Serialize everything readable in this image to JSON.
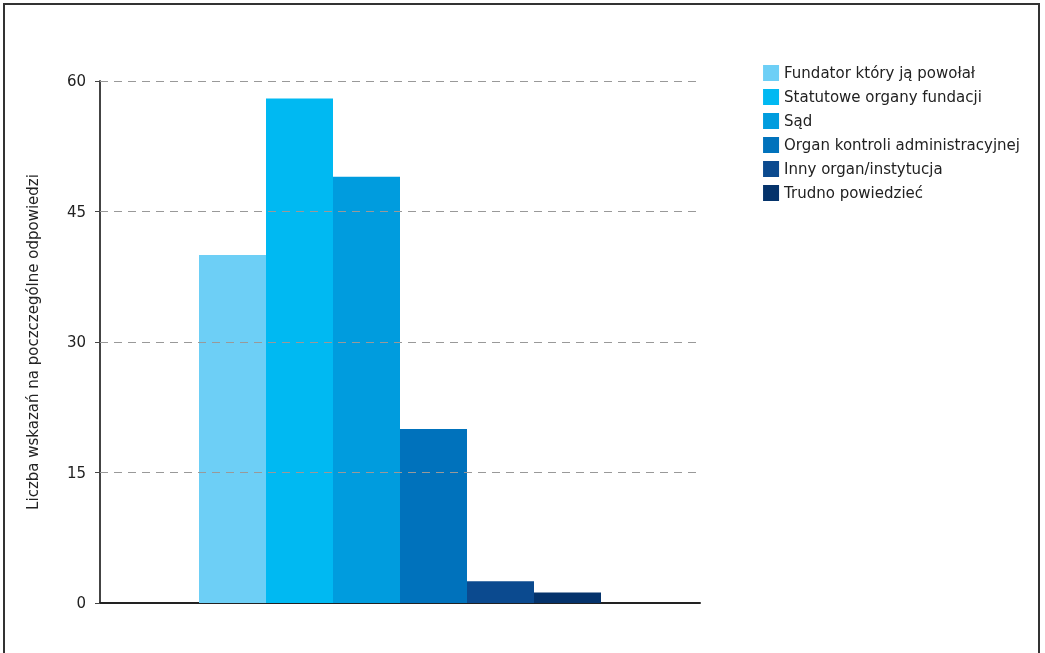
{
  "chart_data": {
    "type": "bar",
    "ylabel": "Liczba wskazań na poczczególne odpowiedzi",
    "categories": [
      null
    ],
    "series": [
      {
        "name": "Fundator który ją powołał",
        "color": "#6dcff6",
        "values": [
          40
        ]
      },
      {
        "name": "Statutowe organy fundacji",
        "color": "#00b9f2",
        "values": [
          58
        ]
      },
      {
        "name": "Sąd",
        "color": "#009cde",
        "values": [
          49
        ]
      },
      {
        "name": "Organ kontroli administracyjnej",
        "color": "#0072bc",
        "values": [
          20
        ]
      },
      {
        "name": "Inny organ/instytucja",
        "color": "#0b4a8f",
        "values": [
          2.5
        ]
      },
      {
        "name": "Trudno powiedzieć",
        "color": "#05336b",
        "values": [
          1.2
        ]
      }
    ],
    "ylim": [
      0,
      60
    ],
    "yticks": [
      0,
      15,
      30,
      45,
      60
    ],
    "grid": "y",
    "legend": "right"
  }
}
